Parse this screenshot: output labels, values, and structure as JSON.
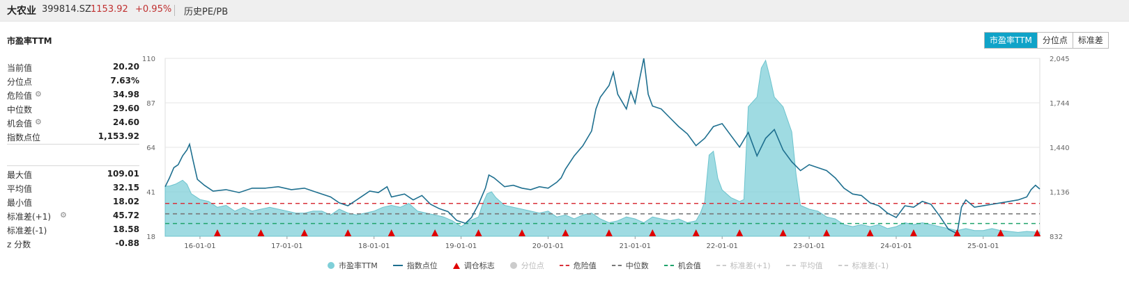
{
  "header": {
    "name": "大农业",
    "code": "399814.SZ",
    "price": "1153.92",
    "change": "+0.95%",
    "history_label": "历史PE/PB"
  },
  "panel_title": "市盈率TTM",
  "tabs": [
    {
      "label": "市盈率TTM",
      "active": true
    },
    {
      "label": "分位点",
      "active": false
    },
    {
      "label": "标准差",
      "active": false
    }
  ],
  "stats_top": [
    {
      "label": "当前值",
      "value": "20.20",
      "gear": false
    },
    {
      "label": "分位点",
      "value": "7.63%",
      "gear": false
    },
    {
      "label": "危险值",
      "value": "34.98",
      "gear": true
    },
    {
      "label": "中位数",
      "value": "29.60",
      "gear": false
    },
    {
      "label": "机会值",
      "value": "24.60",
      "gear": true
    },
    {
      "label": "指数点位",
      "value": "1,153.92",
      "gear": false
    }
  ],
  "stats_bottom": [
    {
      "label": "最大值",
      "value": "109.01",
      "gear": false
    },
    {
      "label": "平均值",
      "value": "32.15",
      "gear": false
    },
    {
      "label": "最小值",
      "value": "18.02",
      "gear": false
    },
    {
      "label": "标准差(+1)",
      "value": "45.72",
      "gear": true
    },
    {
      "label": "标准差(-1)",
      "value": "18.58",
      "gear": false
    },
    {
      "label": "z 分数",
      "value": "-0.88",
      "gear": false
    }
  ],
  "legend": [
    {
      "label": "市盈率TTM",
      "kind": "dot",
      "color": "#7fcfd8",
      "dim": false
    },
    {
      "label": "指数点位",
      "kind": "line",
      "color": "#1e6f8f",
      "dim": false
    },
    {
      "label": "调仓标志",
      "kind": "tri",
      "color": "#e00000",
      "dim": false
    },
    {
      "label": "分位点",
      "kind": "dot",
      "color": "#cccccc",
      "dim": true
    },
    {
      "label": "危险值",
      "kind": "dash",
      "color": "#d9313a",
      "dim": false
    },
    {
      "label": "中位数",
      "kind": "dash",
      "color": "#777777",
      "dim": false
    },
    {
      "label": "机会值",
      "kind": "dash",
      "color": "#1fa36b",
      "dim": false
    },
    {
      "label": "标准差(+1)",
      "kind": "dash",
      "color": "#cccccc",
      "dim": true
    },
    {
      "label": "平均值",
      "kind": "dash",
      "color": "#cccccc",
      "dim": true
    },
    {
      "label": "标准差(-1)",
      "kind": "dash",
      "color": "#cccccc",
      "dim": true
    }
  ],
  "chart_data": {
    "type": "area",
    "x_tick_labels": [
      "16-01-01",
      "17-01-01",
      "18-01-01",
      "19-01-01",
      "20-01-01",
      "21-01-01",
      "22-01-01",
      "23-01-01",
      "24-01-01",
      "25-01-01"
    ],
    "x_ticks": [
      2016,
      2017,
      2018,
      2019,
      2020,
      2021,
      2022,
      2023,
      2024,
      2025
    ],
    "xlim": [
      2015.6,
      2025.65
    ],
    "y_left_ticks": [
      18,
      41,
      64,
      87,
      110
    ],
    "y_left_lim": [
      18,
      110
    ],
    "y_right_ticks": [
      "832",
      "1,136",
      "1,440",
      "1,744",
      "2,045"
    ],
    "y_right_lim": [
      832,
      2045
    ],
    "hlines": {
      "danger": 34.98,
      "median": 29.6,
      "opportunity": 24.6
    },
    "colors": {
      "pe": "#7fcfd8",
      "index": "#1e6f8f",
      "danger": "#d9313a",
      "median": "#777777",
      "opportunity": "#1fa36b",
      "marker": "#e00000"
    },
    "series": [
      {
        "name": "市盈率TTM",
        "axis": "left",
        "points": [
          [
            2015.6,
            44
          ],
          [
            2015.65,
            44
          ],
          [
            2015.72,
            45
          ],
          [
            2015.8,
            47
          ],
          [
            2015.85,
            45
          ],
          [
            2015.9,
            40
          ],
          [
            2016.0,
            37
          ],
          [
            2016.1,
            36
          ],
          [
            2016.2,
            33
          ],
          [
            2016.3,
            34
          ],
          [
            2016.4,
            31
          ],
          [
            2016.5,
            33
          ],
          [
            2016.6,
            31
          ],
          [
            2016.7,
            32
          ],
          [
            2016.8,
            33
          ],
          [
            2016.9,
            32
          ],
          [
            2017.0,
            31
          ],
          [
            2017.1,
            30
          ],
          [
            2017.2,
            30
          ],
          [
            2017.3,
            31
          ],
          [
            2017.4,
            31
          ],
          [
            2017.5,
            29
          ],
          [
            2017.6,
            32
          ],
          [
            2017.7,
            30
          ],
          [
            2017.8,
            29
          ],
          [
            2017.9,
            30
          ],
          [
            2018.0,
            31
          ],
          [
            2018.1,
            33
          ],
          [
            2018.2,
            34
          ],
          [
            2018.3,
            33
          ],
          [
            2018.4,
            35
          ],
          [
            2018.5,
            31
          ],
          [
            2018.6,
            30
          ],
          [
            2018.7,
            29
          ],
          [
            2018.8,
            28
          ],
          [
            2018.9,
            26
          ],
          [
            2019.0,
            23
          ],
          [
            2019.1,
            26
          ],
          [
            2019.2,
            28
          ],
          [
            2019.25,
            35
          ],
          [
            2019.3,
            40
          ],
          [
            2019.35,
            41
          ],
          [
            2019.4,
            38
          ],
          [
            2019.5,
            34
          ],
          [
            2019.6,
            33
          ],
          [
            2019.7,
            32
          ],
          [
            2019.8,
            31
          ],
          [
            2019.9,
            30
          ],
          [
            2020.0,
            31
          ],
          [
            2020.1,
            28
          ],
          [
            2020.2,
            29
          ],
          [
            2020.3,
            27
          ],
          [
            2020.4,
            29
          ],
          [
            2020.5,
            30
          ],
          [
            2020.6,
            27
          ],
          [
            2020.7,
            25
          ],
          [
            2020.8,
            26
          ],
          [
            2020.9,
            28
          ],
          [
            2021.0,
            27
          ],
          [
            2021.1,
            25
          ],
          [
            2021.2,
            28
          ],
          [
            2021.3,
            27
          ],
          [
            2021.4,
            26
          ],
          [
            2021.5,
            27
          ],
          [
            2021.6,
            25
          ],
          [
            2021.7,
            26
          ],
          [
            2021.75,
            30
          ],
          [
            2021.8,
            36
          ],
          [
            2021.85,
            60
          ],
          [
            2021.9,
            62
          ],
          [
            2021.95,
            48
          ],
          [
            2022.0,
            42
          ],
          [
            2022.1,
            38
          ],
          [
            2022.2,
            36
          ],
          [
            2022.25,
            37
          ],
          [
            2022.3,
            85
          ],
          [
            2022.4,
            90
          ],
          [
            2022.45,
            105
          ],
          [
            2022.5,
            109
          ],
          [
            2022.55,
            100
          ],
          [
            2022.6,
            90
          ],
          [
            2022.7,
            85
          ],
          [
            2022.8,
            72
          ],
          [
            2022.85,
            50
          ],
          [
            2022.9,
            34
          ],
          [
            2023.0,
            32
          ],
          [
            2023.1,
            31
          ],
          [
            2023.2,
            28
          ],
          [
            2023.3,
            27
          ],
          [
            2023.4,
            24
          ],
          [
            2023.5,
            23
          ],
          [
            2023.6,
            24
          ],
          [
            2023.7,
            23
          ],
          [
            2023.8,
            24
          ],
          [
            2023.9,
            22
          ],
          [
            2024.0,
            23
          ],
          [
            2024.1,
            25
          ],
          [
            2024.2,
            24
          ],
          [
            2024.3,
            25
          ],
          [
            2024.4,
            24
          ],
          [
            2024.5,
            23
          ],
          [
            2024.6,
            22
          ],
          [
            2024.7,
            21
          ],
          [
            2024.8,
            22
          ],
          [
            2024.9,
            21
          ],
          [
            2025.0,
            21
          ],
          [
            2025.1,
            22
          ],
          [
            2025.2,
            21
          ],
          [
            2025.3,
            20.5
          ],
          [
            2025.4,
            20
          ],
          [
            2025.5,
            20.5
          ],
          [
            2025.6,
            20.2
          ],
          [
            2025.65,
            20.2
          ]
        ]
      },
      {
        "name": "指数点位",
        "axis": "right",
        "points": [
          [
            2015.6,
            1170
          ],
          [
            2015.65,
            1230
          ],
          [
            2015.7,
            1300
          ],
          [
            2015.75,
            1320
          ],
          [
            2015.8,
            1380
          ],
          [
            2015.85,
            1420
          ],
          [
            2015.88,
            1460
          ],
          [
            2015.92,
            1350
          ],
          [
            2015.97,
            1220
          ],
          [
            2016.05,
            1180
          ],
          [
            2016.15,
            1140
          ],
          [
            2016.3,
            1150
          ],
          [
            2016.45,
            1130
          ],
          [
            2016.6,
            1160
          ],
          [
            2016.75,
            1160
          ],
          [
            2016.9,
            1170
          ],
          [
            2017.05,
            1150
          ],
          [
            2017.2,
            1160
          ],
          [
            2017.35,
            1130
          ],
          [
            2017.5,
            1100
          ],
          [
            2017.6,
            1060
          ],
          [
            2017.7,
            1040
          ],
          [
            2017.85,
            1100
          ],
          [
            2017.95,
            1140
          ],
          [
            2018.05,
            1130
          ],
          [
            2018.15,
            1170
          ],
          [
            2018.2,
            1100
          ],
          [
            2018.35,
            1120
          ],
          [
            2018.45,
            1080
          ],
          [
            2018.55,
            1110
          ],
          [
            2018.65,
            1050
          ],
          [
            2018.75,
            1020
          ],
          [
            2018.85,
            1000
          ],
          [
            2018.95,
            940
          ],
          [
            2019.05,
            920
          ],
          [
            2019.12,
            960
          ],
          [
            2019.2,
            1050
          ],
          [
            2019.28,
            1160
          ],
          [
            2019.32,
            1250
          ],
          [
            2019.38,
            1230
          ],
          [
            2019.5,
            1170
          ],
          [
            2019.6,
            1180
          ],
          [
            2019.7,
            1160
          ],
          [
            2019.8,
            1150
          ],
          [
            2019.9,
            1170
          ],
          [
            2020.0,
            1160
          ],
          [
            2020.1,
            1200
          ],
          [
            2020.15,
            1230
          ],
          [
            2020.2,
            1290
          ],
          [
            2020.3,
            1380
          ],
          [
            2020.4,
            1450
          ],
          [
            2020.5,
            1550
          ],
          [
            2020.55,
            1700
          ],
          [
            2020.6,
            1780
          ],
          [
            2020.7,
            1860
          ],
          [
            2020.75,
            1950
          ],
          [
            2020.8,
            1800
          ],
          [
            2020.9,
            1700
          ],
          [
            2020.95,
            1820
          ],
          [
            2021.0,
            1740
          ],
          [
            2021.05,
            1900
          ],
          [
            2021.1,
            2045
          ],
          [
            2021.15,
            1800
          ],
          [
            2021.2,
            1720
          ],
          [
            2021.3,
            1700
          ],
          [
            2021.4,
            1640
          ],
          [
            2021.5,
            1580
          ],
          [
            2021.6,
            1530
          ],
          [
            2021.7,
            1450
          ],
          [
            2021.8,
            1500
          ],
          [
            2021.9,
            1580
          ],
          [
            2022.0,
            1600
          ],
          [
            2022.1,
            1520
          ],
          [
            2022.2,
            1440
          ],
          [
            2022.3,
            1540
          ],
          [
            2022.4,
            1380
          ],
          [
            2022.5,
            1500
          ],
          [
            2022.6,
            1560
          ],
          [
            2022.7,
            1420
          ],
          [
            2022.8,
            1340
          ],
          [
            2022.9,
            1280
          ],
          [
            2023.0,
            1320
          ],
          [
            2023.1,
            1300
          ],
          [
            2023.2,
            1280
          ],
          [
            2023.3,
            1230
          ],
          [
            2023.4,
            1160
          ],
          [
            2023.5,
            1120
          ],
          [
            2023.6,
            1110
          ],
          [
            2023.7,
            1060
          ],
          [
            2023.8,
            1040
          ],
          [
            2023.9,
            990
          ],
          [
            2024.0,
            960
          ],
          [
            2024.1,
            1040
          ],
          [
            2024.2,
            1030
          ],
          [
            2024.3,
            1070
          ],
          [
            2024.4,
            1050
          ],
          [
            2024.5,
            970
          ],
          [
            2024.6,
            880
          ],
          [
            2024.7,
            850
          ],
          [
            2024.75,
            1030
          ],
          [
            2024.8,
            1080
          ],
          [
            2024.9,
            1030
          ],
          [
            2025.0,
            1040
          ],
          [
            2025.1,
            1050
          ],
          [
            2025.2,
            1060
          ],
          [
            2025.3,
            1070
          ],
          [
            2025.4,
            1080
          ],
          [
            2025.5,
            1100
          ],
          [
            2025.55,
            1150
          ],
          [
            2025.6,
            1180
          ],
          [
            2025.65,
            1154
          ]
        ]
      }
    ],
    "markers_x": [
      2016.2,
      2016.7,
      2017.2,
      2017.7,
      2018.2,
      2018.7,
      2019.2,
      2019.7,
      2020.2,
      2020.7,
      2021.2,
      2021.7,
      2022.2,
      2022.7,
      2023.2,
      2023.7,
      2024.2,
      2024.7,
      2025.2,
      2025.62
    ]
  }
}
